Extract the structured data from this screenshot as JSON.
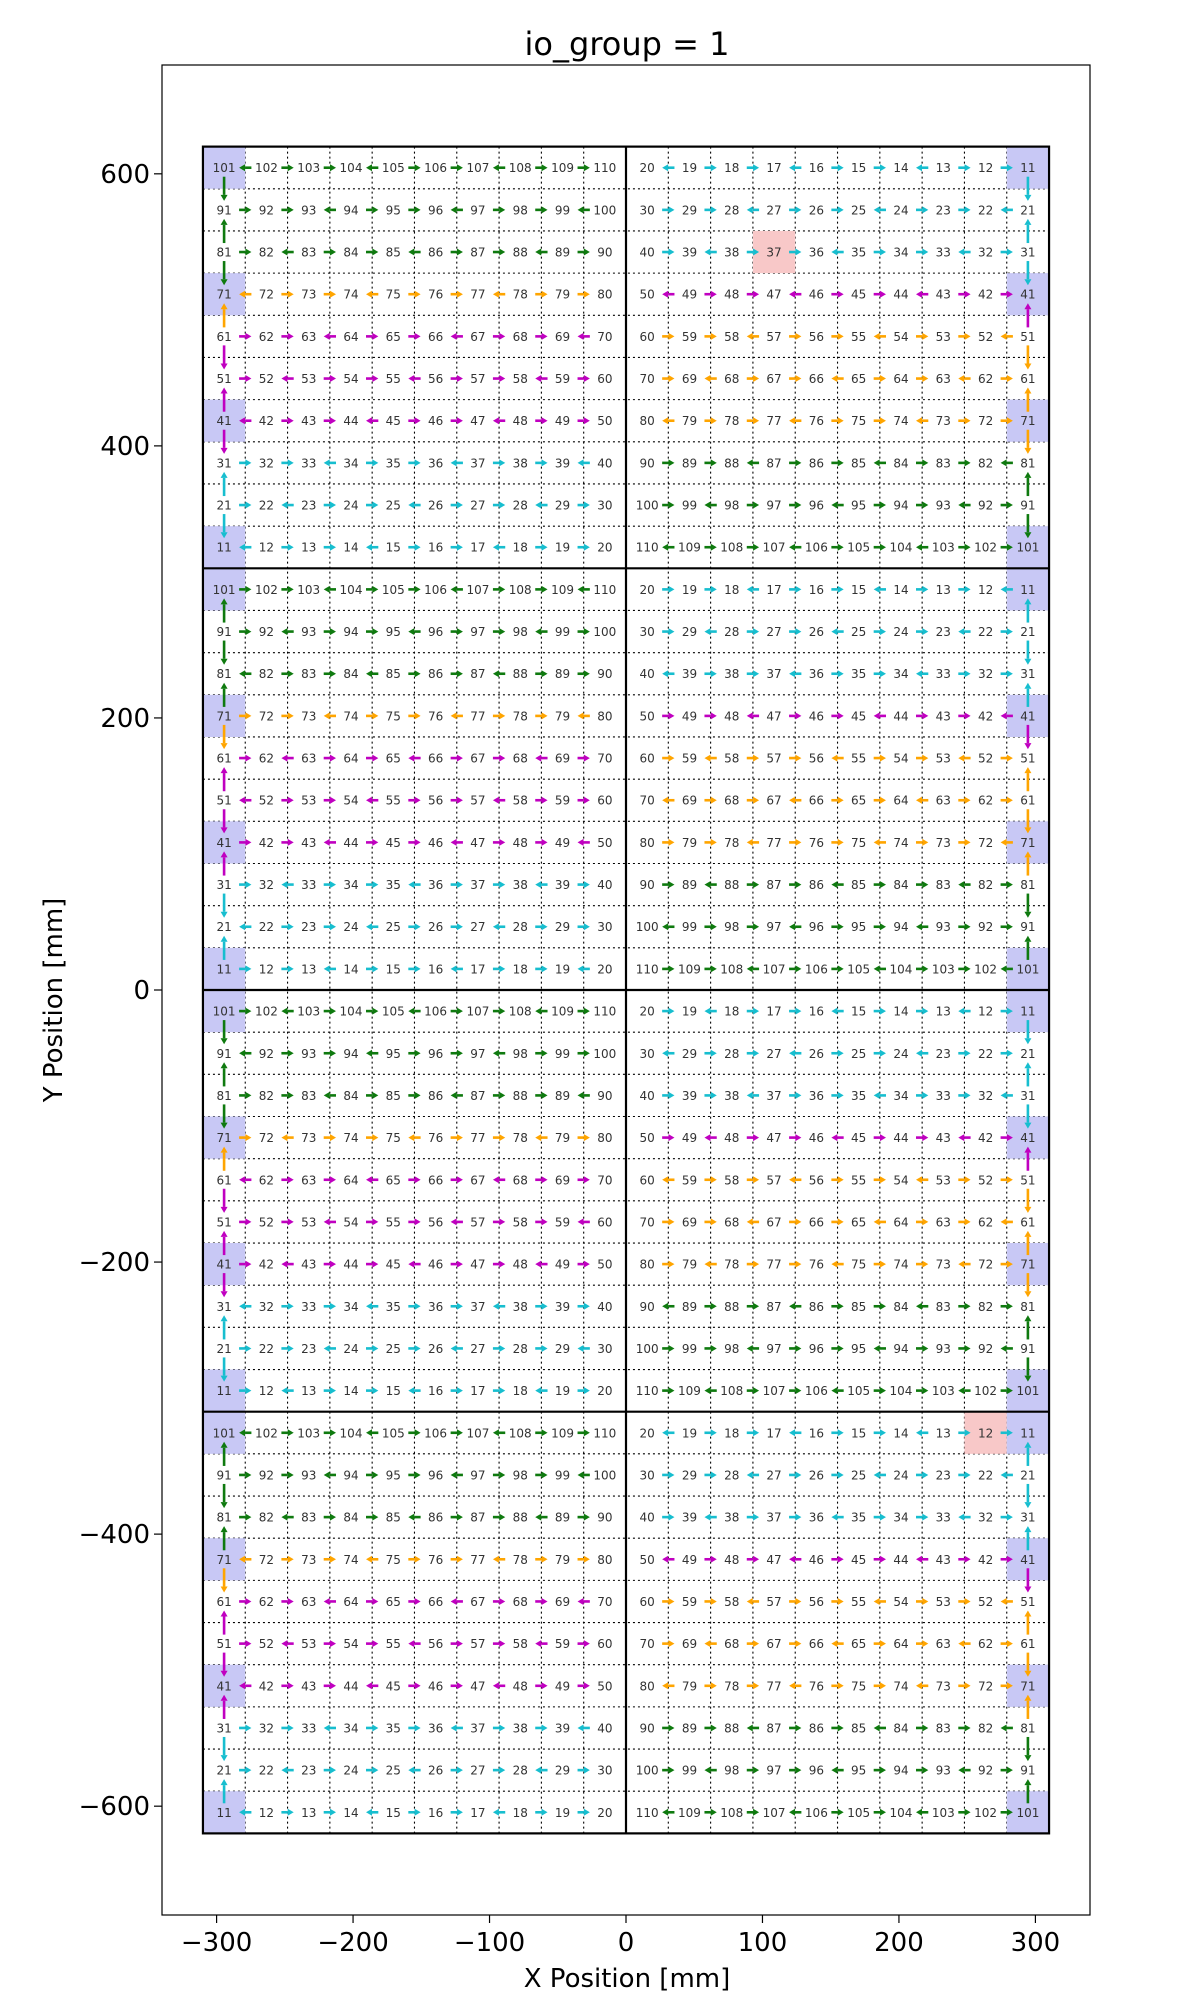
{
  "chart_data": {
    "type": "scatter",
    "title": "io_group = 1",
    "xlabel": "X Position [mm]",
    "ylabel": "Y Position [mm]",
    "xlim": [
      -340,
      340
    ],
    "ylim": [
      -680,
      680
    ],
    "xticks": [
      -300,
      -200,
      -100,
      0,
      100,
      200,
      300
    ],
    "yticks": [
      -600,
      -400,
      -200,
      0,
      200,
      400,
      600
    ],
    "xtick_labels": [
      "−300",
      "−200",
      "−100",
      "0",
      "100",
      "200",
      "300"
    ],
    "ytick_labels": [
      "−600",
      "−400",
      "−200",
      "0",
      "200",
      "400",
      "600"
    ],
    "grid_x_range": [
      -310,
      310
    ],
    "grid_y_range": [
      -620,
      620
    ],
    "tile_divisions": {
      "x": [
        0
      ],
      "y": [
        -310,
        0,
        310
      ]
    },
    "chip_pitch_mm": 31,
    "colors": {
      "cyan": "#17becf",
      "green": "#0f7a0f",
      "magenta": "#c000c0",
      "orange": "#ffa500",
      "root": "#c8c8f5",
      "missing": "#f8c8c8"
    },
    "root_chips_left": [
      101,
      71,
      41,
      11
    ],
    "root_chips_right": [
      11,
      41,
      71,
      101
    ],
    "row_colors_left": [
      "green",
      "green",
      "green",
      "orange",
      "magenta",
      "magenta",
      "magenta",
      "cyan",
      "cyan",
      "cyan"
    ],
    "row_colors_right": [
      "cyan",
      "cyan",
      "cyan",
      "magenta",
      "orange",
      "orange",
      "orange",
      "green",
      "green",
      "green"
    ],
    "missing_chips": [
      {
        "tile_row": 0,
        "half": "right",
        "chip": "37"
      },
      {
        "tile_row": 3,
        "half": "right",
        "chip": "12"
      }
    ],
    "chip_id_rows_left": [
      [
        "101",
        "102",
        "103",
        "104",
        "105",
        "106",
        "107",
        "108",
        "109",
        "110"
      ],
      [
        "91",
        "92",
        "93",
        "94",
        "95",
        "96",
        "97",
        "98",
        "99",
        "100"
      ],
      [
        "81",
        "82",
        "83",
        "84",
        "85",
        "86",
        "87",
        "88",
        "89",
        "90"
      ],
      [
        "71",
        "72",
        "73",
        "74",
        "75",
        "76",
        "77",
        "78",
        "79",
        "80"
      ],
      [
        "61",
        "62",
        "63",
        "64",
        "65",
        "66",
        "67",
        "68",
        "69",
        "70"
      ],
      [
        "51",
        "52",
        "53",
        "54",
        "55",
        "56",
        "57",
        "58",
        "59",
        "60"
      ],
      [
        "41",
        "42",
        "43",
        "44",
        "45",
        "46",
        "47",
        "48",
        "49",
        "50"
      ],
      [
        "31",
        "32",
        "33",
        "34",
        "35",
        "36",
        "37",
        "38",
        "39",
        "40"
      ],
      [
        "21",
        "22",
        "23",
        "24",
        "25",
        "26",
        "27",
        "28",
        "29",
        "30"
      ],
      [
        "11",
        "12",
        "13",
        "14",
        "15",
        "16",
        "17",
        "18",
        "19",
        "20"
      ]
    ],
    "chip_id_rows_right": [
      [
        "20",
        "19",
        "18",
        "17",
        "16",
        "15",
        "14",
        "13",
        "12",
        "11"
      ],
      [
        "30",
        "29",
        "28",
        "27",
        "26",
        "25",
        "24",
        "23",
        "22",
        "21"
      ],
      [
        "40",
        "39",
        "38",
        "37",
        "36",
        "35",
        "34",
        "33",
        "32",
        "31"
      ],
      [
        "50",
        "49",
        "48",
        "47",
        "46",
        "45",
        "44",
        "43",
        "42",
        "41"
      ],
      [
        "60",
        "59",
        "58",
        "57",
        "56",
        "55",
        "54",
        "53",
        "52",
        "51"
      ],
      [
        "70",
        "69",
        "68",
        "67",
        "66",
        "65",
        "64",
        "63",
        "62",
        "61"
      ],
      [
        "80",
        "79",
        "78",
        "77",
        "76",
        "75",
        "74",
        "73",
        "72",
        "71"
      ],
      [
        "90",
        "89",
        "88",
        "87",
        "86",
        "85",
        "84",
        "83",
        "82",
        "81"
      ],
      [
        "100",
        "99",
        "98",
        "97",
        "96",
        "95",
        "94",
        "93",
        "92",
        "91"
      ],
      [
        "110",
        "109",
        "108",
        "107",
        "106",
        "105",
        "104",
        "103",
        "102",
        "101"
      ]
    ]
  }
}
